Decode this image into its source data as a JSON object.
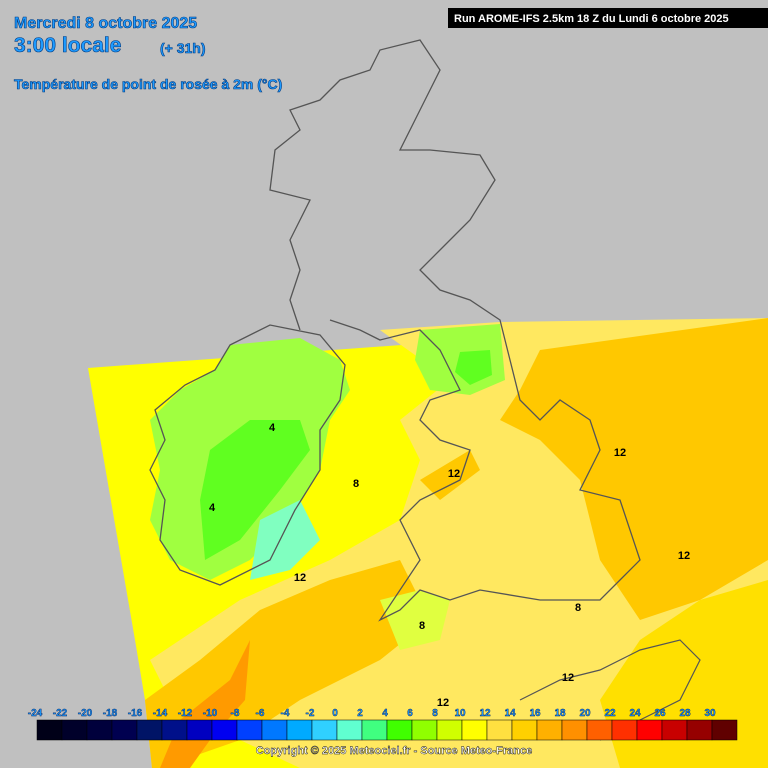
{
  "header": {
    "date": "Mercredi 8 octobre 2025",
    "time": "3:00 locale",
    "lead": "(+ 31h)",
    "field": "Température de point de rosée à 2m (°C)",
    "run": "Run AROME-IFS 2.5km 18 Z du Lundi 6 octobre 2025"
  },
  "contour_labels": [
    4,
    4,
    8,
    12,
    12,
    12,
    12,
    8,
    8,
    12,
    12
  ],
  "legend": {
    "ticks": [
      -24,
      -22,
      -20,
      -18,
      -16,
      -14,
      -12,
      -10,
      -8,
      -6,
      -4,
      -2,
      0,
      2,
      4,
      6,
      8,
      10,
      12,
      14,
      16,
      18,
      20,
      22,
      24,
      26,
      28,
      30
    ],
    "colors": [
      "#000018",
      "#00002a",
      "#00003c",
      "#000050",
      "#001466",
      "#00108a",
      "#0000c0",
      "#0000f0",
      "#0040ff",
      "#0078ff",
      "#00aaff",
      "#30d0ff",
      "#60ffd0",
      "#40ff80",
      "#40ff00",
      "#90ff00",
      "#d0ff00",
      "#ffff00",
      "#ffe040",
      "#ffd000",
      "#ffb000",
      "#ff9000",
      "#ff6000",
      "#ff3000",
      "#ff0000",
      "#c80000",
      "#960000",
      "#600000"
    ]
  },
  "footer": {
    "copyright": "Copyright © 2025 Meteociel.fr - Source Meteo-France"
  }
}
